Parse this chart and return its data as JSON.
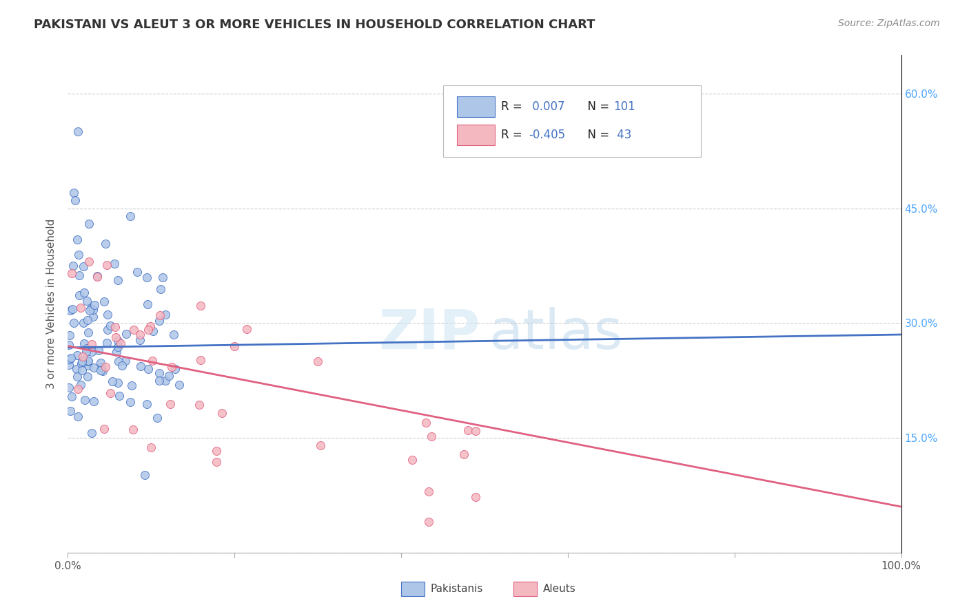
{
  "title": "PAKISTANI VS ALEUT 3 OR MORE VEHICLES IN HOUSEHOLD CORRELATION CHART",
  "source": "Source: ZipAtlas.com",
  "ylabel": "3 or more Vehicles in Household",
  "xmin": 0.0,
  "xmax": 1.0,
  "ymin": 0.0,
  "ymax": 0.65,
  "pakistani_color": "#aec6e8",
  "aleut_color": "#f4b8c1",
  "pakistani_edge_color": "#4472c4",
  "aleut_edge_color": "#e06080",
  "pakistani_line_color": "#4472c4",
  "aleut_line_color": "#e06080",
  "legend_color": "#4472c4",
  "r_pakistani": 0.007,
  "n_pakistani": 101,
  "r_aleut": -0.405,
  "n_aleut": 43,
  "pak_line_x0": 0.0,
  "pak_line_x1": 1.0,
  "pak_line_y0": 0.268,
  "pak_line_y1": 0.285,
  "aleut_line_x0": 0.0,
  "aleut_line_x1": 1.0,
  "aleut_line_y0": 0.27,
  "aleut_line_y1": 0.06,
  "watermark_zip": "ZIP",
  "watermark_atlas": "atlas",
  "grid_color": "#cccccc",
  "right_tick_color": "#4da6ff",
  "title_color": "#333333",
  "source_color": "#888888"
}
